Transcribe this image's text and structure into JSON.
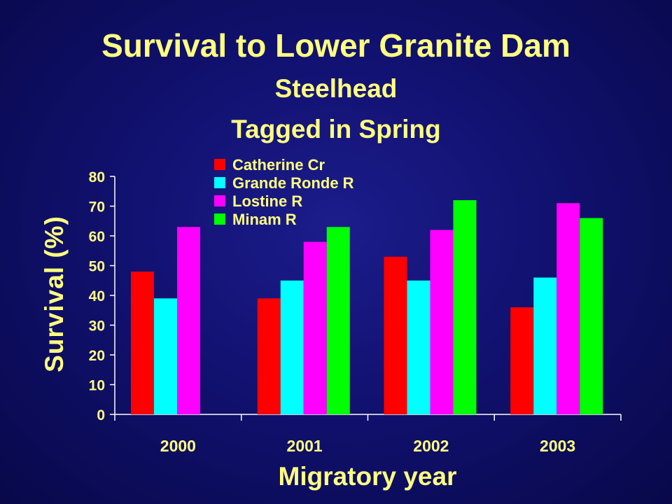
{
  "chart_data": {
    "type": "bar",
    "title": "Survival to Lower Granite Dam",
    "subtitle": [
      "Steelhead",
      "Tagged in Spring"
    ],
    "xlabel": "Migratory year",
    "ylabel": "Survival (%)",
    "categories": [
      "2000",
      "2001",
      "2002",
      "2003"
    ],
    "ylim": [
      0,
      80
    ],
    "yticks": [
      0,
      10,
      20,
      30,
      40,
      50,
      60,
      70,
      80
    ],
    "legend_position": "top-center",
    "grid": false,
    "series": [
      {
        "name": "Catherine Cr",
        "color": "#ff0000",
        "values": [
          48,
          39,
          53,
          36
        ]
      },
      {
        "name": "Grande Ronde R",
        "color": "#00ffff",
        "values": [
          39,
          45,
          45,
          46
        ]
      },
      {
        "name": "Lostine R",
        "color": "#ff00ff",
        "values": [
          63,
          58,
          62,
          71
        ]
      },
      {
        "name": "Minam R",
        "color": "#00ff00",
        "values": [
          null,
          63,
          72,
          66
        ]
      }
    ]
  },
  "colors": {
    "background": "#13137a",
    "text": "#ffff80",
    "axis": "#ffffff"
  }
}
